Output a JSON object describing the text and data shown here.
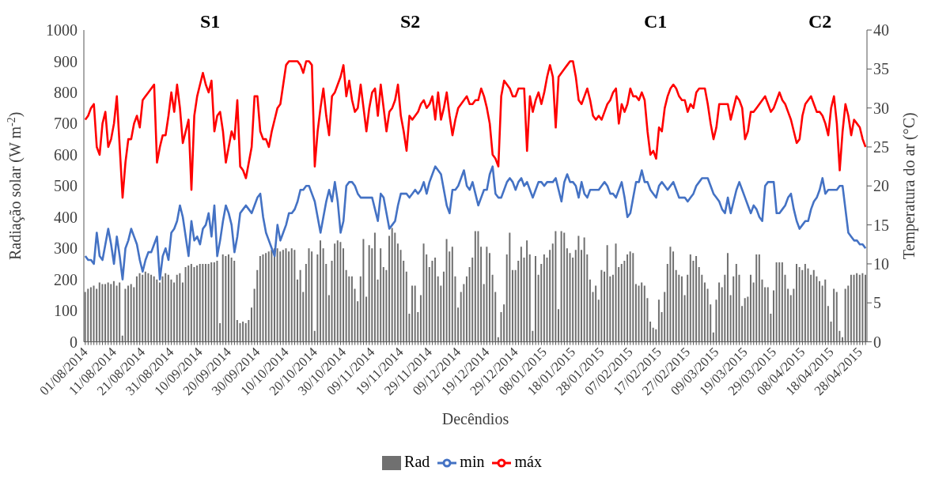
{
  "chart_data": {
    "type": "bar",
    "xlabel": "Decêndios",
    "ylabel": "Radiação  solar  (W m$^{-2}$)",
    "y2label": "Temperatura  do ar (°C)",
    "legend": "bottom",
    "ylim": [
      0,
      1000
    ],
    "yticks": [
      0,
      100,
      200,
      300,
      400,
      500,
      600,
      700,
      800,
      900,
      1000
    ],
    "y2lim": [
      0,
      40
    ],
    "y2ticks": [
      0,
      5,
      10,
      15,
      20,
      25,
      30,
      35,
      40
    ],
    "annotations": [
      "S1",
      "S2",
      "C1",
      "C2"
    ],
    "categories": [
      "01/08/2014",
      null,
      null,
      null,
      null,
      null,
      null,
      null,
      null,
      null,
      "11/08/2014",
      null,
      null,
      null,
      null,
      null,
      null,
      null,
      null,
      null,
      "21/08/2014",
      null,
      null,
      null,
      null,
      null,
      null,
      null,
      null,
      null,
      "31/08/2014",
      null,
      null,
      null,
      null,
      null,
      null,
      null,
      null,
      null,
      "10/09/2014",
      null,
      null,
      null,
      null,
      null,
      null,
      null,
      null,
      null,
      "20/09/2014",
      null,
      null,
      null,
      null,
      null,
      null,
      null,
      null,
      null,
      "30/09/2014",
      null,
      null,
      null,
      null,
      null,
      null,
      null,
      null,
      null,
      "10/10/2014",
      null,
      null,
      null,
      null,
      null,
      null,
      null,
      null,
      null,
      "20/10/2014",
      null,
      null,
      null,
      null,
      null,
      null,
      null,
      null,
      null,
      "30/10/2014",
      null,
      null,
      null,
      null,
      null,
      null,
      null,
      null,
      null,
      "09/11/2014",
      null,
      null,
      null,
      null,
      null,
      null,
      null,
      null,
      null,
      "19/11/2014",
      null,
      null,
      null,
      null,
      null,
      null,
      null,
      null,
      null,
      "29/11/2014",
      null,
      null,
      null,
      null,
      null,
      null,
      null,
      null,
      null,
      "09/12/2014",
      null,
      null,
      null,
      null,
      null,
      null,
      null,
      null,
      null,
      "19/12/2014",
      null,
      null,
      null,
      null,
      null,
      null,
      null,
      null,
      null,
      "29/12/2014",
      null,
      null,
      null,
      null,
      null,
      null,
      null,
      null,
      null,
      "08/01/2015",
      null,
      null,
      null,
      null,
      null,
      null,
      null,
      null,
      null,
      "18/01/2015",
      null,
      null,
      null,
      null,
      null,
      null,
      null,
      null,
      null,
      "28/01/2015",
      null,
      null,
      null,
      null,
      null,
      null,
      null,
      null,
      null,
      "07/02/2015",
      null,
      null,
      null,
      null,
      null,
      null,
      null,
      null,
      null,
      "17/02/2015",
      null,
      null,
      null,
      null,
      null,
      null,
      null,
      null,
      null,
      "27/02/2015",
      null,
      null,
      null,
      null,
      null,
      null,
      null,
      null,
      null,
      "09/03/2015",
      null,
      null,
      null,
      null,
      null,
      null,
      null,
      null,
      null,
      "19/03/2015",
      null,
      null,
      null,
      null,
      null,
      null,
      null,
      null,
      null,
      "29/03/2015",
      null,
      null,
      null,
      null,
      null,
      null,
      null,
      null,
      null,
      "08/04/2015",
      null,
      null,
      null,
      null,
      null,
      null,
      null,
      null,
      null,
      "18/04/2015",
      null,
      null,
      null,
      null,
      null,
      null,
      null,
      null,
      null,
      "28/04/2015",
      null,
      null
    ],
    "series": [
      {
        "name": "Rad",
        "color": "#707070",
        "values": [
          160,
          170,
          175,
          180,
          170,
          190,
          185,
          185,
          190,
          185,
          195,
          180,
          190,
          20,
          170,
          180,
          185,
          175,
          210,
          220,
          215,
          225,
          220,
          215,
          210,
          200,
          190,
          210,
          220,
          215,
          200,
          190,
          215,
          220,
          190,
          240,
          245,
          250,
          240,
          245,
          250,
          250,
          250,
          250,
          255,
          255,
          260,
          60,
          280,
          275,
          280,
          270,
          260,
          70,
          60,
          65,
          60,
          70,
          110,
          170,
          230,
          275,
          280,
          285,
          290,
          295,
          300,
          300,
          290,
          295,
          300,
          290,
          300,
          295,
          200,
          230,
          160,
          250,
          300,
          290,
          35,
          280,
          325,
          300,
          250,
          150,
          260,
          315,
          325,
          320,
          300,
          230,
          210,
          210,
          170,
          130,
          210,
          330,
          145,
          310,
          300,
          350,
          200,
          300,
          240,
          230,
          340,
          365,
          350,
          315,
          295,
          260,
          225,
          90,
          180,
          180,
          95,
          150,
          315,
          280,
          240,
          260,
          270,
          210,
          180,
          225,
          330,
          290,
          305,
          210,
          110,
          160,
          185,
          210,
          240,
          270,
          355,
          355,
          305,
          185,
          305,
          285,
          215,
          160,
          15,
          95,
          120,
          280,
          350,
          230,
          230,
          260,
          305,
          270,
          325,
          280,
          35,
          275,
          215,
          250,
          280,
          270,
          295,
          315,
          355,
          105,
          355,
          350,
          300,
          285,
          270,
          295,
          340,
          295,
          335,
          280,
          200,
          160,
          180,
          135,
          230,
          225,
          310,
          210,
          215,
          315,
          240,
          250,
          260,
          280,
          290,
          285,
          185,
          180,
          190,
          180,
          140,
          65,
          45,
          40,
          135,
          95,
          160,
          250,
          305,
          290,
          230,
          215,
          210,
          150,
          215,
          280,
          260,
          275,
          240,
          215,
          190,
          170,
          120,
          30,
          135,
          190,
          175,
          215,
          285,
          150,
          210,
          250,
          215,
          115,
          140,
          145,
          215,
          190,
          280,
          280,
          200,
          175,
          175,
          90,
          165,
          255,
          255,
          255,
          215,
          170,
          150,
          170,
          250,
          240,
          230,
          250,
          235,
          215,
          230,
          210,
          195,
          180,
          200,
          115,
          65,
          170,
          160,
          35,
          15,
          170,
          180,
          215,
          215,
          220,
          215,
          220,
          215
        ]
      },
      {
        "name": "min",
        "type": "line",
        "axis": "y2",
        "color": "#4472c4",
        "values": [
          11,
          10.5,
          10.5,
          10,
          14,
          11,
          10.5,
          12.5,
          14.5,
          12.5,
          10,
          13.5,
          11,
          8,
          12,
          13,
          14.5,
          13.5,
          12.5,
          10.5,
          9,
          10.5,
          11.5,
          11.5,
          12.5,
          13.5,
          8,
          11,
          12,
          10.5,
          14,
          14.5,
          15.5,
          17.5,
          16,
          13.5,
          11,
          15.5,
          13,
          13.5,
          12.5,
          14.5,
          15,
          16.5,
          13.5,
          17.5,
          11,
          13,
          15.5,
          17.5,
          16.5,
          15,
          11.5,
          13.5,
          16.5,
          17,
          17.5,
          17,
          16.5,
          17.5,
          18.5,
          19,
          16,
          14,
          13,
          12,
          11,
          15,
          13,
          14,
          15,
          16.5,
          16.5,
          17,
          18,
          19.5,
          19.5,
          20,
          20,
          19,
          18,
          16,
          14,
          16,
          18,
          19.5,
          18,
          20.5,
          18,
          14,
          15.5,
          20,
          20.5,
          20.5,
          20,
          19,
          18.5,
          18.5,
          18.5,
          18.5,
          18.5,
          17,
          15.5,
          19,
          18.5,
          16.5,
          14.5,
          15,
          15.5,
          17.5,
          19,
          19,
          19,
          18.5,
          19,
          19.5,
          19,
          19.5,
          20.5,
          19,
          20.5,
          21.5,
          22.5,
          22,
          21.5,
          19.5,
          17.5,
          16.5,
          19.5,
          19.5,
          20,
          21,
          22,
          20,
          19.5,
          20.5,
          19,
          17.5,
          18.5,
          19.5,
          19.5,
          21.5,
          22.5,
          19,
          18.5,
          18.5,
          19.5,
          20.5,
          21,
          20.5,
          19.5,
          20.5,
          21,
          20,
          20.5,
          19.5,
          18.5,
          19.5,
          20.5,
          20.5,
          20,
          20.5,
          20.5,
          20.5,
          21,
          19.5,
          18,
          20.5,
          21.5,
          20.5,
          20.5,
          20,
          18.5,
          20.5,
          19,
          18.5,
          19.5,
          19.5,
          19.5,
          19.5,
          20,
          20.5,
          20,
          19,
          19,
          18.5,
          19.5,
          20.5,
          18.5,
          16,
          16.5,
          18.5,
          20.5,
          20.5,
          22,
          20.5,
          20.5,
          19.5,
          19,
          18.5,
          20,
          20.5,
          20,
          19.5,
          20,
          20.5,
          19.5,
          18.5,
          18.5,
          18.5,
          18,
          18.5,
          19,
          20,
          20.5,
          21,
          21,
          21,
          20,
          19,
          18.5,
          18,
          17,
          16.5,
          18.5,
          16.5,
          18,
          19.5,
          20.5,
          19.5,
          18.5,
          17.5,
          16.5,
          17.5,
          17,
          16,
          15.5,
          20,
          20.5,
          20.5,
          20.5,
          16.5,
          16.5,
          17,
          17.5,
          18.5,
          19,
          17,
          15.5,
          14.5,
          15,
          15.5,
          15.5,
          17,
          18,
          18.5,
          19.5,
          21,
          19,
          19.5,
          19.5,
          19.5,
          19.5,
          20,
          20,
          17,
          14,
          13.5,
          13,
          13,
          12.5,
          12.5,
          12
        ]
      },
      {
        "name": "máx",
        "type": "line",
        "axis": "y2",
        "color": "#ff0000",
        "values": [
          28.5,
          29,
          30,
          30.5,
          25,
          24,
          28,
          29.5,
          25,
          26,
          28,
          31.5,
          25,
          18.5,
          23,
          26,
          26,
          28,
          29,
          27.5,
          31,
          31.5,
          32,
          32.5,
          33,
          23,
          25,
          26.5,
          26.5,
          29,
          32,
          29.5,
          33,
          30,
          25.5,
          27,
          28.5,
          19.5,
          29,
          31.5,
          33,
          34.5,
          33,
          32,
          33.5,
          27,
          29,
          29.5,
          27,
          23,
          25,
          27,
          26,
          31,
          22.5,
          22,
          21,
          23,
          25,
          31.5,
          31.5,
          27,
          26,
          26,
          25,
          27,
          28.5,
          30,
          30.5,
          33,
          35.5,
          36,
          36,
          36,
          36,
          35.5,
          34.5,
          36,
          36,
          35.5,
          22.5,
          27,
          30,
          32.5,
          29,
          26.5,
          31.5,
          32,
          33,
          34,
          35.5,
          31.5,
          33.5,
          31,
          29.5,
          30,
          33,
          30,
          27,
          30,
          32,
          32.5,
          29,
          33,
          30,
          27,
          29.5,
          30,
          31,
          33,
          29,
          27,
          24.5,
          29,
          28.5,
          29,
          29.5,
          30.5,
          31,
          30,
          30.5,
          31.5,
          28.5,
          32,
          28.5,
          30,
          32,
          29,
          26.5,
          28.5,
          30,
          30.5,
          31,
          31.5,
          30.5,
          30.5,
          31,
          31,
          32.5,
          31.5,
          30,
          28,
          24,
          23.5,
          22.5,
          31.5,
          33.5,
          33,
          32.5,
          31.5,
          31.5,
          32.5,
          32.5,
          32.5,
          24.5,
          31.5,
          29.5,
          31,
          32,
          30.5,
          32,
          34,
          35.5,
          34,
          27.5,
          34,
          34.5,
          35,
          35.5,
          36,
          36,
          34,
          31,
          30.5,
          31.5,
          32.5,
          31,
          29,
          28.5,
          29,
          28.5,
          29.5,
          30.5,
          31,
          32,
          32.5,
          28,
          30.5,
          29.5,
          30.5,
          32.5,
          31.5,
          31.5,
          31,
          32,
          31,
          27,
          24,
          24.5,
          23.5,
          27.5,
          27,
          30,
          31.5,
          32.5,
          33,
          32.5,
          31.5,
          31,
          31,
          29.5,
          30.5,
          30,
          32,
          32.5,
          32.5,
          32.5,
          30.5,
          28,
          26,
          27.5,
          30.5,
          30.5,
          30.5,
          30.5,
          28.5,
          30,
          31.5,
          31,
          30,
          26,
          27,
          29.5,
          29.5,
          30,
          30.5,
          31,
          31.5,
          30.5,
          29.5,
          30,
          31,
          32,
          31,
          30.5,
          29.5,
          28.5,
          27,
          25.5,
          26,
          29,
          30.5,
          31,
          31.5,
          30.5,
          29.5,
          29.5,
          29,
          28,
          26.5,
          30,
          31.5,
          28,
          22,
          27,
          30.5,
          29,
          26.5,
          28.5,
          28,
          27.5,
          26,
          25
        ]
      }
    ]
  }
}
